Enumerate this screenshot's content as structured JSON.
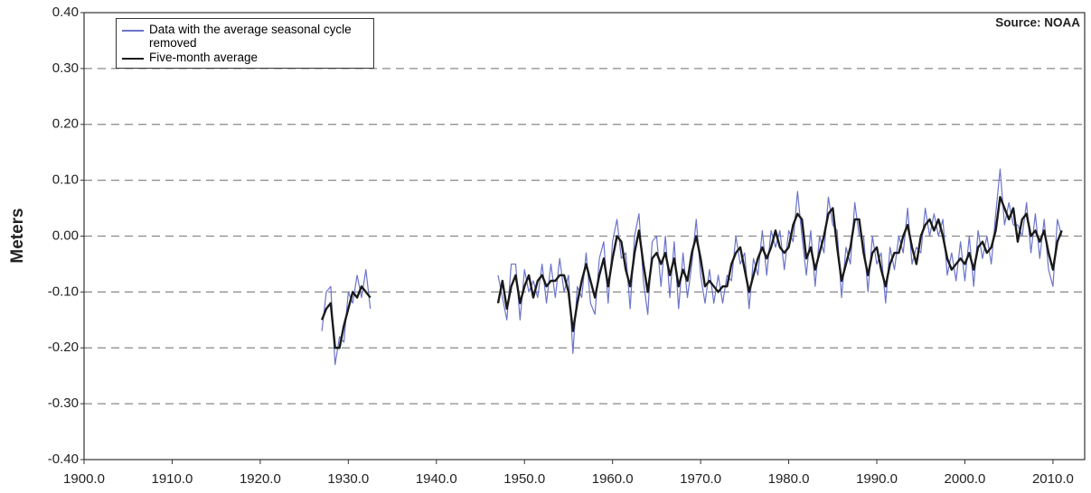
{
  "chart_data": {
    "type": "line",
    "y_label": "Meters",
    "annotation": "Source: NOAA",
    "x": [
      1927.0,
      1927.5,
      1928.0,
      1928.5,
      1929.0,
      1929.5,
      1930.0,
      1930.5,
      1931.0,
      1931.5,
      1932.0,
      1932.5,
      1940.0,
      1947.0,
      1947.5,
      1948.0,
      1948.5,
      1949.0,
      1949.5,
      1950.0,
      1950.5,
      1951.0,
      1951.5,
      1952.0,
      1952.5,
      1953.0,
      1953.5,
      1954.0,
      1954.5,
      1955.0,
      1955.5,
      1956.0,
      1956.5,
      1957.0,
      1957.5,
      1958.0,
      1958.5,
      1959.0,
      1959.5,
      1960.0,
      1960.5,
      1961.0,
      1961.5,
      1962.0,
      1962.5,
      1963.0,
      1963.5,
      1964.0,
      1964.5,
      1965.0,
      1965.5,
      1966.0,
      1966.5,
      1967.0,
      1967.5,
      1968.0,
      1968.5,
      1969.0,
      1969.5,
      1970.0,
      1970.5,
      1971.0,
      1971.5,
      1972.0,
      1972.5,
      1973.0,
      1973.5,
      1974.0,
      1974.5,
      1975.0,
      1975.5,
      1976.0,
      1976.5,
      1977.0,
      1977.5,
      1978.0,
      1978.5,
      1979.0,
      1979.5,
      1980.0,
      1980.5,
      1981.0,
      1981.5,
      1982.0,
      1982.5,
      1983.0,
      1983.5,
      1984.0,
      1984.5,
      1985.0,
      1985.5,
      1986.0,
      1986.5,
      1987.0,
      1987.5,
      1988.0,
      1988.5,
      1989.0,
      1989.5,
      1990.0,
      1990.5,
      1991.0,
      1991.5,
      1992.0,
      1992.5,
      1993.0,
      1993.5,
      1994.0,
      1994.5,
      1995.0,
      1995.5,
      1996.0,
      1996.5,
      1997.0,
      1997.5,
      1998.0,
      1998.5,
      1999.0,
      1999.5,
      2000.0,
      2000.5,
      2001.0,
      2001.5,
      2002.0,
      2002.5,
      2003.0,
      2003.5,
      2004.0,
      2004.5,
      2005.0,
      2005.5,
      2006.0,
      2006.5,
      2007.0,
      2007.5,
      2008.0,
      2008.5,
      2009.0,
      2009.5,
      2010.0,
      2010.5,
      2011.0
    ],
    "series": [
      {
        "name": "Data with the average seasonal cycle removed",
        "color": "#6b74c9",
        "width": 1.2,
        "values": [
          -0.17,
          -0.1,
          -0.09,
          -0.23,
          -0.18,
          -0.19,
          -0.1,
          -0.12,
          -0.07,
          -0.11,
          -0.06,
          -0.13,
          null,
          -0.07,
          -0.11,
          -0.15,
          -0.05,
          -0.05,
          -0.15,
          -0.06,
          -0.1,
          -0.08,
          -0.11,
          -0.05,
          -0.12,
          -0.05,
          -0.11,
          -0.04,
          -0.1,
          -0.07,
          -0.21,
          -0.09,
          -0.11,
          -0.03,
          -0.12,
          -0.14,
          -0.04,
          -0.01,
          -0.12,
          -0.01,
          0.03,
          -0.04,
          -0.03,
          -0.13,
          0.0,
          0.04,
          -0.08,
          -0.14,
          -0.01,
          0.0,
          -0.09,
          0.0,
          -0.11,
          -0.01,
          -0.13,
          -0.03,
          -0.11,
          -0.05,
          0.03,
          -0.07,
          -0.12,
          -0.06,
          -0.12,
          -0.07,
          -0.12,
          -0.07,
          -0.08,
          0.0,
          -0.05,
          -0.03,
          -0.13,
          -0.04,
          -0.07,
          0.01,
          -0.07,
          0.01,
          -0.02,
          0.01,
          -0.06,
          0.01,
          -0.01,
          0.08,
          0.0,
          -0.07,
          0.01,
          -0.09,
          0.0,
          -0.03,
          0.07,
          0.02,
          0.01,
          -0.11,
          -0.02,
          -0.05,
          0.06,
          0.0,
          0.0,
          -0.1,
          0.0,
          -0.05,
          -0.03,
          -0.12,
          -0.02,
          -0.06,
          0.0,
          -0.03,
          0.05,
          -0.05,
          -0.02,
          -0.03,
          0.05,
          0.0,
          0.04,
          0.0,
          0.03,
          -0.07,
          -0.03,
          -0.08,
          -0.01,
          -0.08,
          0.0,
          -0.09,
          0.01,
          -0.04,
          0.0,
          -0.05,
          0.04,
          0.12,
          0.02,
          0.06,
          0.02,
          0.02,
          0.0,
          0.06,
          -0.03,
          0.04,
          -0.04,
          0.03,
          -0.06,
          -0.09,
          0.03,
          0.0
        ]
      },
      {
        "name": "Five-month average",
        "color": "#1a1a1a",
        "width": 2.4,
        "values": [
          -0.15,
          -0.13,
          -0.12,
          -0.2,
          -0.2,
          -0.16,
          -0.13,
          -0.1,
          -0.11,
          -0.09,
          -0.1,
          -0.11,
          null,
          -0.12,
          -0.08,
          -0.13,
          -0.09,
          -0.07,
          -0.12,
          -0.09,
          -0.07,
          -0.11,
          -0.08,
          -0.07,
          -0.09,
          -0.08,
          -0.08,
          -0.07,
          -0.07,
          -0.1,
          -0.17,
          -0.12,
          -0.08,
          -0.05,
          -0.08,
          -0.11,
          -0.07,
          -0.04,
          -0.09,
          -0.04,
          0.0,
          -0.01,
          -0.06,
          -0.09,
          -0.03,
          0.01,
          -0.05,
          -0.1,
          -0.04,
          -0.03,
          -0.05,
          -0.03,
          -0.07,
          -0.04,
          -0.09,
          -0.06,
          -0.08,
          -0.03,
          0.0,
          -0.04,
          -0.09,
          -0.08,
          -0.09,
          -0.1,
          -0.09,
          -0.09,
          -0.05,
          -0.03,
          -0.02,
          -0.06,
          -0.1,
          -0.07,
          -0.04,
          -0.02,
          -0.04,
          -0.02,
          0.01,
          -0.02,
          -0.03,
          -0.02,
          0.02,
          0.04,
          0.03,
          -0.04,
          -0.02,
          -0.06,
          -0.03,
          0.0,
          0.04,
          0.05,
          -0.02,
          -0.08,
          -0.05,
          -0.02,
          0.03,
          0.03,
          -0.03,
          -0.07,
          -0.03,
          -0.02,
          -0.06,
          -0.09,
          -0.05,
          -0.03,
          -0.03,
          0.0,
          0.02,
          -0.02,
          -0.05,
          0.0,
          0.02,
          0.03,
          0.01,
          0.03,
          0.0,
          -0.04,
          -0.06,
          -0.05,
          -0.04,
          -0.05,
          -0.03,
          -0.06,
          -0.02,
          -0.01,
          -0.03,
          -0.02,
          0.01,
          0.07,
          0.05,
          0.03,
          0.05,
          -0.01,
          0.03,
          0.04,
          0.0,
          0.01,
          -0.01,
          0.01,
          -0.03,
          -0.06,
          -0.01,
          0.01
        ]
      }
    ],
    "xlim": [
      1900,
      2013.6
    ],
    "ylim": [
      -0.4,
      0.4
    ],
    "xticks": [
      {
        "value": 1900,
        "label": "1900.0"
      },
      {
        "value": 1910,
        "label": "1910.0"
      },
      {
        "value": 1920,
        "label": "1920.0"
      },
      {
        "value": 1930,
        "label": "1930.0"
      },
      {
        "value": 1940,
        "label": "1940.0"
      },
      {
        "value": 1950,
        "label": "1950.0"
      },
      {
        "value": 1960,
        "label": "1960.0"
      },
      {
        "value": 1970,
        "label": "1970.0"
      },
      {
        "value": 1980,
        "label": "1980.0"
      },
      {
        "value": 1990,
        "label": "1990.0"
      },
      {
        "value": 2000,
        "label": "2000.0"
      },
      {
        "value": 2010,
        "label": "2010.0"
      }
    ],
    "yticks": [
      {
        "value": 0.4,
        "label": "0.40"
      },
      {
        "value": 0.3,
        "label": "0.30"
      },
      {
        "value": 0.2,
        "label": "0.20"
      },
      {
        "value": 0.1,
        "label": "0.10"
      },
      {
        "value": 0,
        "label": "0.00"
      },
      {
        "value": -0.1,
        "label": "-0.10"
      },
      {
        "value": -0.2,
        "label": "-0.20"
      },
      {
        "value": -0.3,
        "label": "-0.30"
      },
      {
        "value": -0.4,
        "label": "-0.40"
      }
    ],
    "grid": true,
    "legend": "upper left"
  }
}
